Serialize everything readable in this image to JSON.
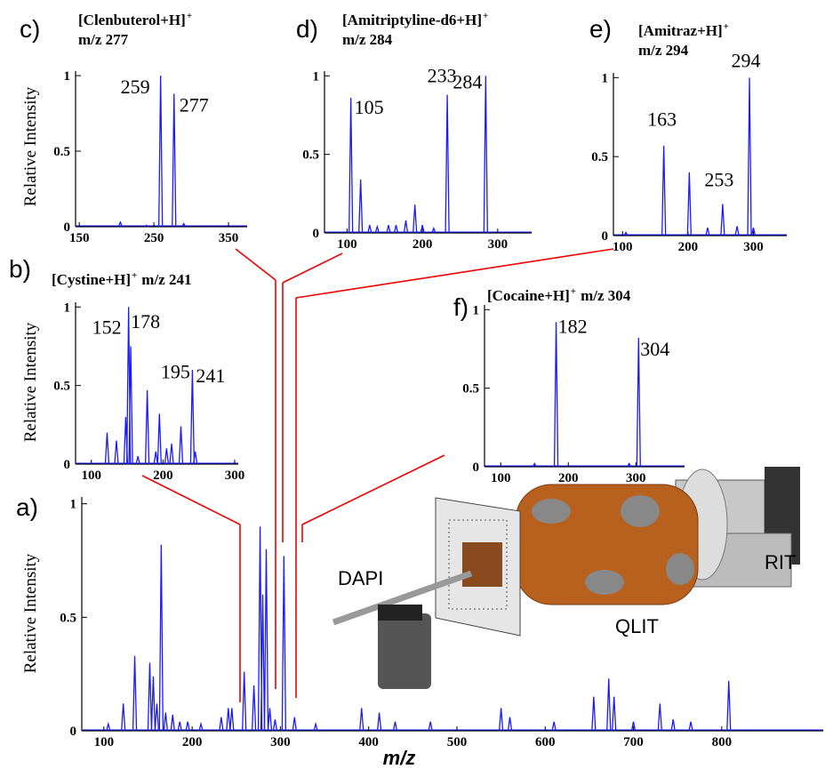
{
  "chart_data": [
    {
      "type": "spectrum",
      "panel_label": "a)",
      "ylabel": "Relative Intensity",
      "xlabel": "m/z",
      "color": "#1a1aff",
      "x": [
        105,
        122,
        135,
        152,
        156,
        160,
        165,
        170,
        178,
        186,
        195,
        210,
        233,
        241,
        245,
        259,
        270,
        277,
        280,
        284,
        288,
        294,
        304,
        316,
        340,
        392,
        412,
        430,
        470,
        550,
        560,
        610,
        655,
        672,
        678,
        700,
        730,
        745,
        765,
        808
      ],
      "values": [
        0.03,
        0.12,
        0.33,
        0.3,
        0.24,
        0.12,
        0.82,
        0.08,
        0.07,
        0.04,
        0.04,
        0.03,
        0.06,
        0.1,
        0.1,
        0.26,
        0.2,
        0.9,
        0.6,
        0.8,
        0.1,
        0.05,
        0.77,
        0.06,
        0.03,
        0.1,
        0.08,
        0.04,
        0.04,
        0.1,
        0.06,
        0.04,
        0.15,
        0.23,
        0.15,
        0.04,
        0.12,
        0.05,
        0.04,
        0.22
      ],
      "xlim": [
        75,
        915
      ],
      "xticks": [
        100,
        200,
        300,
        400,
        500,
        600,
        700,
        800
      ],
      "ylim": [
        0,
        1.03
      ],
      "yticks": [
        0,
        0.5,
        1
      ]
    },
    {
      "type": "spectrum",
      "panel_label": "b)",
      "title": "[Cystine+H]",
      "title_sup": "+",
      "subtitle": "m/z 241",
      "ylabel": "Relative Intensity",
      "color": "#1a1aff",
      "x": [
        122,
        135,
        148,
        152,
        155,
        165,
        178,
        190,
        195,
        205,
        212,
        225,
        241,
        245
      ],
      "values": [
        0.2,
        0.15,
        0.3,
        1.0,
        0.75,
        0.05,
        0.47,
        0.08,
        0.32,
        0.1,
        0.13,
        0.24,
        0.6,
        0.08
      ],
      "peak_labels": [
        null,
        null,
        null,
        "152",
        null,
        null,
        "178",
        null,
        "195",
        null,
        null,
        null,
        "241",
        null
      ],
      "xlim": [
        78,
        305
      ],
      "xticks": [
        100,
        200,
        300
      ],
      "ylim": [
        0,
        1.03
      ],
      "yticks": [
        0,
        0.5,
        1
      ]
    },
    {
      "type": "spectrum",
      "panel_label": "c)",
      "title": "[Clenbuterol+H]",
      "title_sup": "+",
      "subtitle": "m/z 277",
      "ylabel": "Relative Intensity",
      "color": "#1a1aff",
      "x": [
        205,
        240,
        259,
        277,
        290
      ],
      "values": [
        0.03,
        0.01,
        1.0,
        0.88,
        0.02
      ],
      "peak_labels": [
        null,
        null,
        "259",
        "277",
        null
      ],
      "xlim": [
        145,
        375
      ],
      "xticks": [
        150,
        250,
        350
      ],
      "ylim": [
        0,
        1.03
      ],
      "yticks": [
        0,
        0.5,
        1
      ]
    },
    {
      "type": "spectrum",
      "panel_label": "d)",
      "title": "[Amitriptyline-d6+H]",
      "title_sup": "+",
      "subtitle": "m/z 284",
      "color": "#1a1aff",
      "x": [
        105,
        118,
        130,
        140,
        155,
        165,
        178,
        190,
        200,
        215,
        233,
        284
      ],
      "values": [
        0.86,
        0.34,
        0.05,
        0.04,
        0.05,
        0.05,
        0.08,
        0.18,
        0.05,
        0.03,
        0.88,
        1.0
      ],
      "peak_labels": [
        "105",
        null,
        null,
        null,
        null,
        null,
        null,
        null,
        null,
        null,
        "233",
        "284"
      ],
      "xlim": [
        70,
        345
      ],
      "xticks": [
        100,
        200,
        300
      ],
      "ylim": [
        0,
        1.03
      ],
      "yticks": [
        0,
        0.5,
        1
      ]
    },
    {
      "type": "spectrum",
      "panel_label": "e)",
      "title": "[Amitraz+H]",
      "title_sup": "+",
      "subtitle": "m/z 294",
      "color": "#1a1aff",
      "x": [
        105,
        163,
        202,
        230,
        253,
        275,
        294,
        300
      ],
      "values": [
        0.02,
        0.57,
        0.4,
        0.05,
        0.2,
        0.06,
        1.0,
        0.05
      ],
      "peak_labels": [
        null,
        "163",
        null,
        null,
        "253",
        null,
        "294",
        null
      ],
      "xlim": [
        86,
        351
      ],
      "xticks": [
        100,
        200,
        300
      ],
      "ylim": [
        0,
        1.03
      ],
      "yticks": [
        0,
        0.5,
        1
      ]
    },
    {
      "type": "spectrum",
      "panel_label": "f)",
      "title": "[Cocaine+H]",
      "title_sup": "+",
      "subtitle": "m/z 304",
      "color": "#1a1aff",
      "x": [
        150,
        182,
        290,
        304
      ],
      "values": [
        0.02,
        0.92,
        0.02,
        0.82
      ],
      "peak_labels": [
        null,
        "182",
        null,
        "304"
      ],
      "xlim": [
        76,
        372
      ],
      "xticks": [
        100,
        200,
        300
      ],
      "ylim": [
        0,
        1.03
      ],
      "yticks": [
        0,
        0.5,
        1
      ]
    }
  ],
  "apparatus_labels": [
    "DAPI",
    "QLIT",
    "RIT"
  ]
}
